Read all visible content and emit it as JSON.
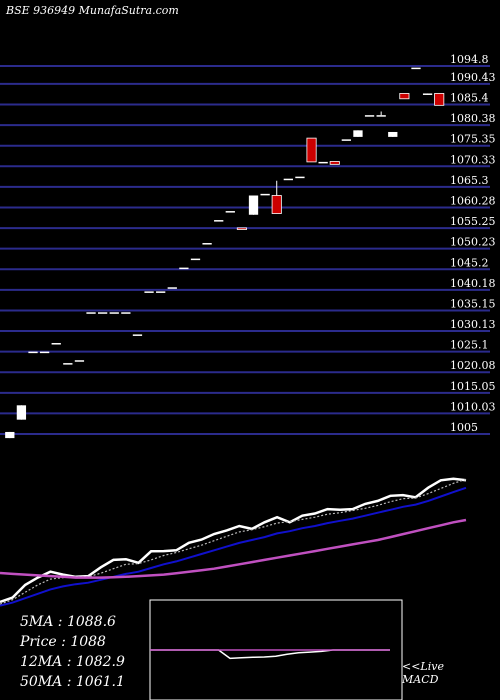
{
  "header": {
    "title": "BSE 936949 MunafaSutra.com"
  },
  "colors": {
    "background": "#000000",
    "gridline": "#2b2b8c",
    "bull_candle": "#ffffff",
    "bear_candle": "#cc0000",
    "price_line": "#ffffff",
    "ma_short": "#bbbbbb",
    "ma_mid": "#1010cc",
    "ma_long": "#c050c0",
    "macd_line": "#ffffff",
    "signal_line": "#c050c0"
  },
  "chart_data": [
    {
      "type": "candlestick",
      "title": "BSE 936949 MunafaSutra.com",
      "y_ticks": [
        1094.8,
        1090.43,
        1085.4,
        1080.38,
        1075.35,
        1070.33,
        1065.3,
        1060.28,
        1055.25,
        1050.23,
        1045.2,
        1040.18,
        1035.15,
        1030.13,
        1025.1,
        1020.08,
        1015.05,
        1010.03,
        1005
      ],
      "ylim": [
        1005,
        1094.8
      ],
      "grid": true,
      "candles": [
        {
          "open": 1005.5,
          "high": 1005.5,
          "low": 1004.0,
          "close": 1004.0,
          "color": "bull"
        },
        {
          "open": 1008.5,
          "high": 1012.0,
          "low": 1008.5,
          "close": 1012.0,
          "color": "bull"
        },
        {
          "open": 1025.1,
          "high": 1025.1,
          "low": 1025.1,
          "close": 1025.1,
          "color": "bull"
        },
        {
          "open": 1025.1,
          "high": 1025.1,
          "low": 1025.1,
          "close": 1025.1,
          "color": "bull"
        },
        {
          "open": 1027.2,
          "high": 1027.2,
          "low": 1027.2,
          "close": 1027.2,
          "color": "bull"
        },
        {
          "open": 1022.3,
          "high": 1022.3,
          "low": 1022.3,
          "close": 1022.3,
          "color": "bull"
        },
        {
          "open": 1023.0,
          "high": 1023.0,
          "low": 1023.0,
          "close": 1023.0,
          "color": "bull"
        },
        {
          "open": 1034.7,
          "high": 1034.7,
          "low": 1034.7,
          "close": 1034.7,
          "color": "bull"
        },
        {
          "open": 1034.7,
          "high": 1034.7,
          "low": 1034.7,
          "close": 1034.7,
          "color": "bull"
        },
        {
          "open": 1034.7,
          "high": 1034.7,
          "low": 1034.7,
          "close": 1034.7,
          "color": "bull"
        },
        {
          "open": 1034.7,
          "high": 1034.7,
          "low": 1034.7,
          "close": 1034.7,
          "color": "bull"
        },
        {
          "open": 1029.3,
          "high": 1029.3,
          "low": 1029.3,
          "close": 1029.3,
          "color": "bull"
        },
        {
          "open": 1039.8,
          "high": 1039.8,
          "low": 1039.8,
          "close": 1039.8,
          "color": "bull"
        },
        {
          "open": 1039.8,
          "high": 1039.8,
          "low": 1039.8,
          "close": 1039.8,
          "color": "bull"
        },
        {
          "open": 1040.8,
          "high": 1040.8,
          "low": 1040.8,
          "close": 1040.8,
          "color": "bull"
        },
        {
          "open": 1045.6,
          "high": 1045.6,
          "low": 1045.6,
          "close": 1045.6,
          "color": "bull"
        },
        {
          "open": 1047.8,
          "high": 1047.8,
          "low": 1047.8,
          "close": 1047.8,
          "color": "bull"
        },
        {
          "open": 1051.6,
          "high": 1051.6,
          "low": 1051.6,
          "close": 1051.6,
          "color": "bull"
        },
        {
          "open": 1057.2,
          "high": 1057.2,
          "low": 1057.2,
          "close": 1057.2,
          "color": "bull"
        },
        {
          "open": 1059.4,
          "high": 1059.4,
          "low": 1059.4,
          "close": 1059.4,
          "color": "bull"
        },
        {
          "open": 1055.3,
          "high": 1055.3,
          "low": 1054.9,
          "close": 1054.9,
          "color": "bear"
        },
        {
          "open": 1058.5,
          "high": 1063.2,
          "low": 1058.5,
          "close": 1063.2,
          "color": "bull"
        },
        {
          "open": 1063.6,
          "high": 1063.6,
          "low": 1063.6,
          "close": 1063.6,
          "color": "bull"
        },
        {
          "open": 1063.2,
          "high": 1066.8,
          "low": 1058.8,
          "close": 1058.8,
          "color": "bear"
        },
        {
          "open": 1067.3,
          "high": 1067.3,
          "low": 1067.3,
          "close": 1067.3,
          "color": "bull"
        },
        {
          "open": 1067.8,
          "high": 1067.8,
          "low": 1067.8,
          "close": 1067.8,
          "color": "bull"
        },
        {
          "open": 1077.2,
          "high": 1077.2,
          "low": 1071.4,
          "close": 1071.4,
          "color": "bear"
        },
        {
          "open": 1071.4,
          "high": 1071.4,
          "low": 1071.4,
          "close": 1071.4,
          "color": "bull"
        },
        {
          "open": 1071.5,
          "high": 1071.5,
          "low": 1070.8,
          "close": 1070.8,
          "color": "bear"
        },
        {
          "open": 1076.9,
          "high": 1076.9,
          "low": 1076.9,
          "close": 1076.9,
          "color": "bull"
        },
        {
          "open": 1077.5,
          "high": 1079.1,
          "low": 1077.5,
          "close": 1079.1,
          "color": "bull"
        },
        {
          "open": 1082.8,
          "high": 1082.8,
          "low": 1082.8,
          "close": 1082.8,
          "color": "bull"
        },
        {
          "open": 1082.8,
          "high": 1083.7,
          "low": 1082.8,
          "close": 1082.8,
          "color": "bull"
        },
        {
          "open": 1077.5,
          "high": 1078.7,
          "low": 1077.5,
          "close": 1078.7,
          "color": "bull"
        },
        {
          "open": 1088.1,
          "high": 1088.1,
          "low": 1086.8,
          "close": 1086.8,
          "color": "bear"
        },
        {
          "open": 1094.4,
          "high": 1094.4,
          "low": 1094.4,
          "close": 1094.4,
          "color": "bull"
        },
        {
          "open": 1087.8,
          "high": 1088.1,
          "low": 1087.8,
          "close": 1088.1,
          "color": "bull"
        },
        {
          "open": 1088.1,
          "high": 1088.1,
          "low": 1085.2,
          "close": 1085.2,
          "color": "bear"
        }
      ]
    },
    {
      "type": "line",
      "series": [
        {
          "values": [
            1005.5,
            1008.5,
            1017.0,
            1022.0,
            1026.0,
            1024.0,
            1022.5,
            1023.0,
            1029.0,
            1034.0,
            1034.5,
            1032.0,
            1039.8,
            1040.0,
            1040.5,
            1045.6,
            1047.8,
            1051.6,
            1054.0,
            1057.0,
            1055.0,
            1059.5,
            1063.0,
            1059.5,
            1064.0,
            1065.5,
            1068.5,
            1068.0,
            1068.5,
            1072.0,
            1074.0,
            1077.5,
            1078.0,
            1076.5,
            1083.0,
            1088.0,
            1089.0,
            1088.0
          ],
          "color_key": "price_line"
        },
        {
          "values": [
            1004.0,
            1007.0,
            1012.0,
            1017.0,
            1021.0,
            1022.0,
            1022.5,
            1022.5,
            1025.0,
            1028.0,
            1031.0,
            1031.5,
            1034.0,
            1037.0,
            1039.0,
            1041.5,
            1044.0,
            1047.0,
            1050.0,
            1053.0,
            1054.5,
            1056.5,
            1059.0,
            1060.0,
            1061.5,
            1063.0,
            1065.0,
            1066.0,
            1067.5,
            1069.0,
            1071.0,
            1073.5,
            1075.5,
            1076.0,
            1079.0,
            1082.5,
            1086.0,
            1088.6
          ],
          "color_key": "ma_short"
        },
        {
          "values": [
            1003.0,
            1005.0,
            1008.0,
            1011.0,
            1014.0,
            1016.0,
            1017.5,
            1018.5,
            1020.5,
            1022.5,
            1024.5,
            1026.0,
            1028.5,
            1031.0,
            1033.0,
            1035.5,
            1038.0,
            1040.5,
            1043.0,
            1045.5,
            1047.5,
            1049.5,
            1052.0,
            1053.5,
            1055.5,
            1057.0,
            1059.0,
            1060.5,
            1062.0,
            1064.0,
            1066.0,
            1068.0,
            1070.0,
            1071.5,
            1074.0,
            1077.0,
            1080.0,
            1082.9
          ],
          "color_key": "ma_mid"
        },
        {
          "values": [
            1025.1,
            1024.5,
            1024.0,
            1023.5,
            1023.0,
            1022.5,
            1022.0,
            1022.0,
            1022.0,
            1022.2,
            1022.5,
            1023.0,
            1023.5,
            1024.0,
            1025.0,
            1026.0,
            1027.0,
            1028.0,
            1029.5,
            1031.0,
            1032.5,
            1034.0,
            1035.5,
            1037.0,
            1038.5,
            1040.0,
            1041.5,
            1043.0,
            1044.5,
            1046.0,
            1047.5,
            1049.5,
            1051.5,
            1053.5,
            1055.5,
            1057.5,
            1059.5,
            1061.1
          ],
          "color_key": "ma_long"
        }
      ]
    },
    {
      "type": "line",
      "series": [
        {
          "values": [
            0.0,
            0.0,
            0.0,
            0.0,
            0.0,
            0.0,
            0.0,
            -0.6,
            -0.55,
            -0.52,
            -0.5,
            -0.45,
            -0.3,
            -0.2,
            -0.15,
            -0.1,
            0.0,
            0.0,
            0.0,
            0.0,
            0.0,
            0.0
          ],
          "color_key": "macd_line"
        },
        {
          "values": [
            0.0,
            0.0,
            0.0,
            0.0,
            0.0,
            0.0,
            0.0,
            0.0,
            0.0,
            0.0,
            0.0,
            0.0,
            0.0,
            0.0,
            0.0,
            0.0,
            0.0,
            0.0,
            0.0,
            0.0,
            0.0,
            0.0
          ],
          "color_key": "signal_line"
        }
      ]
    }
  ],
  "legend": {
    "ma5": "5MA : 1088.6",
    "price": "Price  : 1088",
    "ma12": "12MA : 1082.9",
    "ma50": "50MA : 1061.1"
  },
  "macd": {
    "link_label": "<<Live",
    "label": "MACD"
  }
}
